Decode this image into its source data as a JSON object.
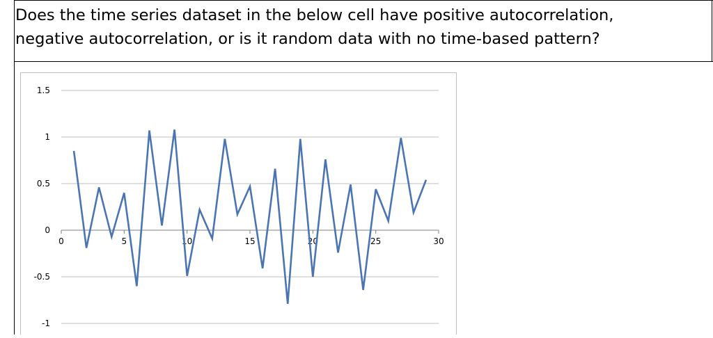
{
  "question": {
    "line1": "Does the time series dataset in the below cell have positive autocorrelation,",
    "line2": "negative autocorrelation, or is it random data with no time-based pattern?"
  },
  "colors": {
    "series": "#4a74b3",
    "grid": "#bfbfbf",
    "axis": "#7f7f7f",
    "border": "#000000"
  },
  "chart_data": {
    "type": "line",
    "title": "",
    "xlabel": "",
    "ylabel": "",
    "xlim": [
      0,
      30
    ],
    "ylim": [
      -1,
      1.5
    ],
    "x_ticks": [
      0,
      5,
      10,
      15,
      20,
      25,
      30
    ],
    "y_ticks": [
      1.5,
      1,
      0.5,
      0,
      -0.5,
      -1
    ],
    "y_tick_labels": [
      "1.5",
      "1",
      "0.5",
      "0",
      "-0.5",
      "-1"
    ],
    "grid": true,
    "legend": "none",
    "series": [
      {
        "x": [
          1,
          2,
          3,
          4,
          5,
          6,
          7,
          8,
          9,
          10,
          11,
          12,
          13,
          14,
          15,
          16,
          17,
          18,
          19,
          20,
          21,
          22,
          23,
          24,
          25,
          26,
          27,
          28,
          29
        ],
        "values": [
          0.85,
          -0.19,
          0.46,
          -0.07,
          0.4,
          -0.6,
          1.07,
          0.05,
          1.08,
          -0.49,
          0.22,
          -0.09,
          0.98,
          0.17,
          0.47,
          -0.41,
          0.66,
          -0.79,
          0.98,
          -0.5,
          0.76,
          -0.24,
          0.49,
          -0.64,
          0.44,
          0.1,
          0.99,
          0.19,
          0.54
        ]
      }
    ]
  }
}
